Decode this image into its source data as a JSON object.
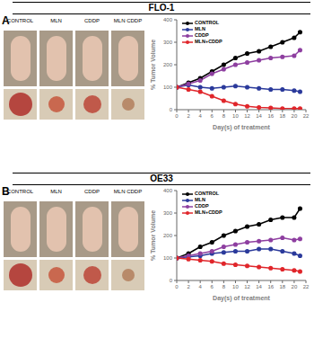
{
  "chart_data": [
    {
      "type": "line",
      "panel_label": "A",
      "title": "FLO-1",
      "photo_labels": [
        "CONTROL",
        "MLN",
        "CDDP",
        "MLN CDDP"
      ],
      "x_label": "Day(s) of treatment",
      "y_label": "% Tumor Volume",
      "x": [
        0,
        2,
        4,
        6,
        8,
        10,
        12,
        14,
        16,
        18,
        20,
        21
      ],
      "series": [
        {
          "name": "CONTROL",
          "color": "#000000",
          "values": [
            100,
            120,
            140,
            170,
            200,
            230,
            250,
            260,
            280,
            300,
            320,
            345
          ]
        },
        {
          "name": "MLN",
          "color": "#2b3a9b",
          "values": [
            100,
            110,
            100,
            95,
            100,
            105,
            100,
            95,
            90,
            90,
            85,
            80
          ]
        },
        {
          "name": "CDDP",
          "color": "#8e3fa0",
          "values": [
            100,
            115,
            130,
            160,
            180,
            200,
            210,
            220,
            230,
            235,
            240,
            265
          ]
        },
        {
          "name": "MLN+CDDP",
          "color": "#e0262b",
          "values": [
            100,
            90,
            80,
            60,
            40,
            25,
            15,
            10,
            8,
            5,
            5,
            5
          ]
        }
      ],
      "xlim": [
        0,
        22
      ],
      "xticks": [
        0,
        2,
        4,
        6,
        8,
        10,
        12,
        14,
        16,
        18,
        20,
        22
      ],
      "ylim": [
        0,
        400
      ],
      "yticks": [
        0,
        100,
        200,
        300,
        400
      ],
      "marker": "circle",
      "legend": "upper left"
    },
    {
      "type": "line",
      "panel_label": "B",
      "title": "OE33",
      "photo_labels": [
        "CONTROL",
        "MLN",
        "CDDP",
        "MLN CDDP"
      ],
      "x_label": "Day(s) of treatment",
      "y_label": "% Tumor Volume",
      "x": [
        0,
        2,
        4,
        6,
        8,
        10,
        12,
        14,
        16,
        18,
        20,
        21
      ],
      "series": [
        {
          "name": "CONTROL",
          "color": "#000000",
          "values": [
            100,
            120,
            150,
            170,
            200,
            220,
            240,
            250,
            270,
            280,
            280,
            320
          ]
        },
        {
          "name": "MLN",
          "color": "#2b3a9b",
          "values": [
            100,
            105,
            110,
            120,
            125,
            130,
            130,
            140,
            140,
            130,
            120,
            110
          ]
        },
        {
          "name": "CDDP",
          "color": "#8e3fa0",
          "values": [
            100,
            110,
            120,
            130,
            150,
            160,
            170,
            175,
            180,
            190,
            180,
            185
          ]
        },
        {
          "name": "MLN+CDDP",
          "color": "#e0262b",
          "values": [
            100,
            95,
            90,
            85,
            75,
            70,
            65,
            60,
            55,
            50,
            45,
            40
          ]
        }
      ],
      "xlim": [
        0,
        22
      ],
      "xticks": [
        0,
        2,
        4,
        6,
        8,
        10,
        12,
        14,
        16,
        18,
        20,
        22
      ],
      "ylim": [
        0,
        400
      ],
      "yticks": [
        0,
        100,
        200,
        300,
        400
      ],
      "marker": "circle",
      "legend": "upper left"
    }
  ]
}
